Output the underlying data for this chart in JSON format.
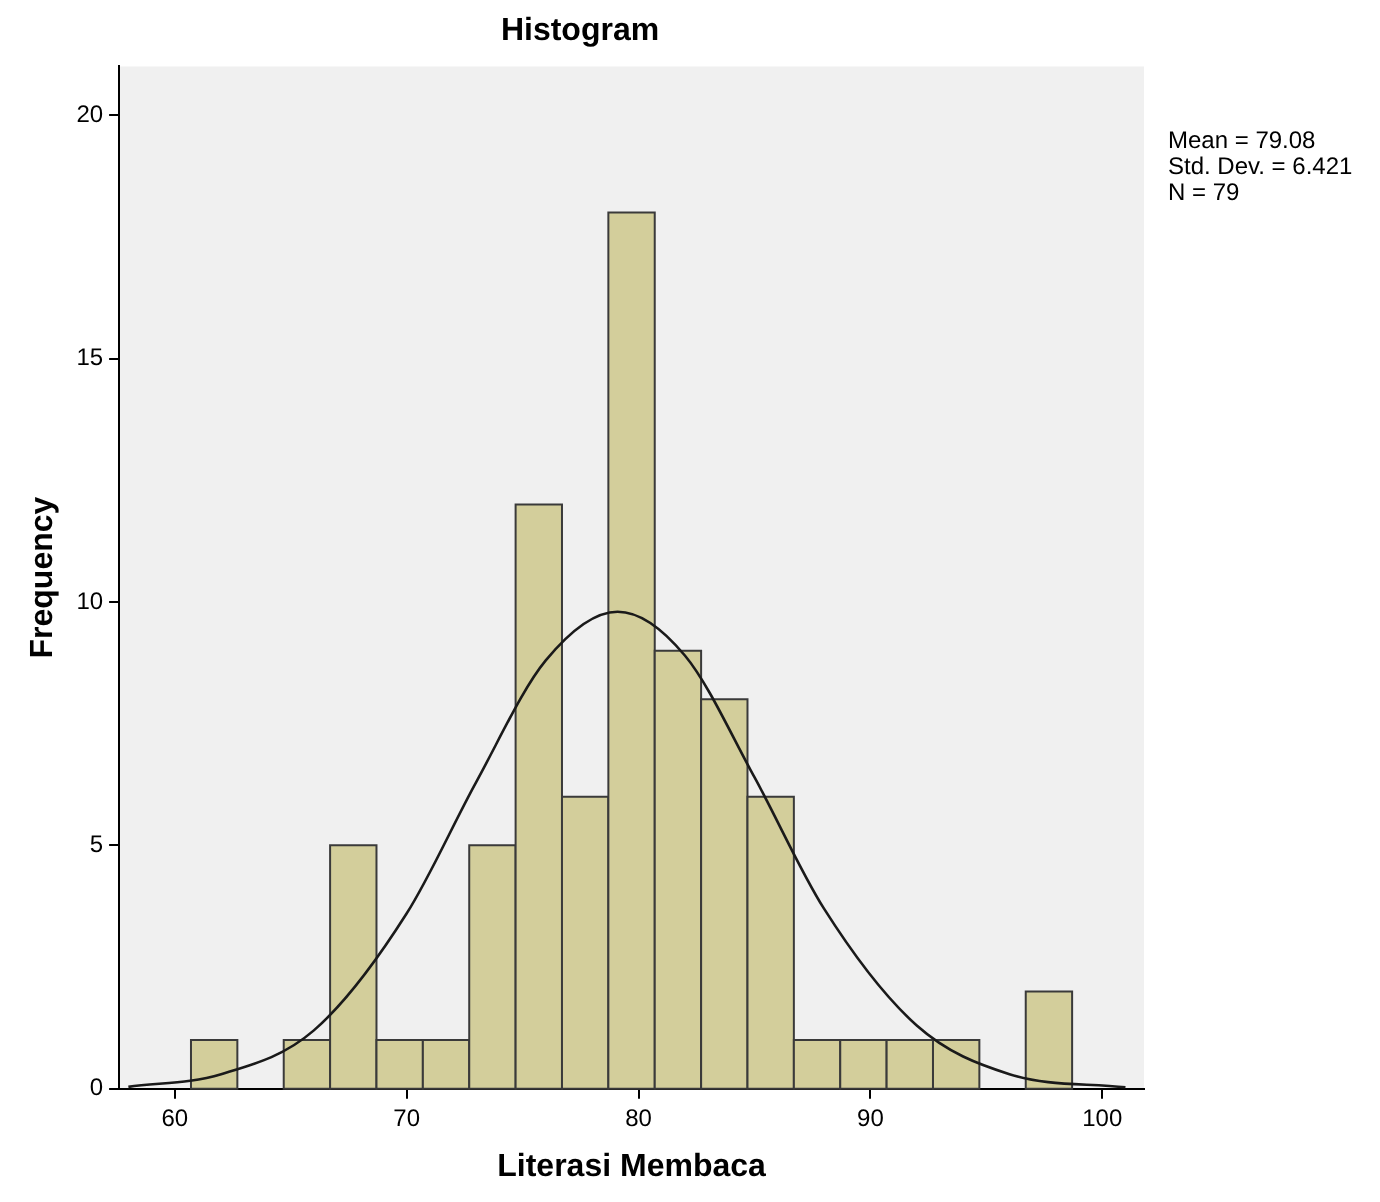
{
  "chart_data": {
    "type": "histogram",
    "title": "Histogram",
    "xlabel": "Literasi Membaca",
    "ylabel": "Frequency",
    "bins": [
      60.7,
      62.7,
      64.7,
      66.7,
      68.7,
      70.7,
      72.7,
      74.7,
      76.7,
      78.7,
      80.7,
      82.7,
      84.7,
      86.7,
      88.7,
      90.7,
      92.7,
      94.7,
      96.7,
      98.7
    ],
    "series": [
      {
        "color": "#d3ce9b",
        "values": [
          1,
          0,
          1,
          5,
          1,
          1,
          5,
          12,
          6,
          18,
          9,
          8,
          6,
          1,
          1,
          1,
          1,
          0,
          2
        ]
      },
      {
        "type": "line",
        "color": "#1a1a1a",
        "x": [
          58,
          62,
          66,
          70,
          73,
          76,
          79.1,
          82,
          85,
          88,
          92,
          96,
          101
        ],
        "values": [
          0.04,
          0.3,
          1.2,
          3.6,
          6.3,
          8.8,
          9.8,
          8.9,
          6.4,
          3.7,
          1.3,
          0.3,
          0.03
        ]
      }
    ],
    "xlim": [
      57.6,
      101.8
    ],
    "xticks": [
      60,
      70,
      80,
      90,
      100
    ],
    "ylim": [
      0,
      21
    ],
    "yticks": [
      0,
      5,
      10,
      15,
      20
    ],
    "grid": false,
    "legend": false,
    "marker": "none",
    "line_style": "solid",
    "annotations": [
      "Mean = 79.08",
      "Std. Dev. = 6.421",
      "N = 79"
    ]
  }
}
